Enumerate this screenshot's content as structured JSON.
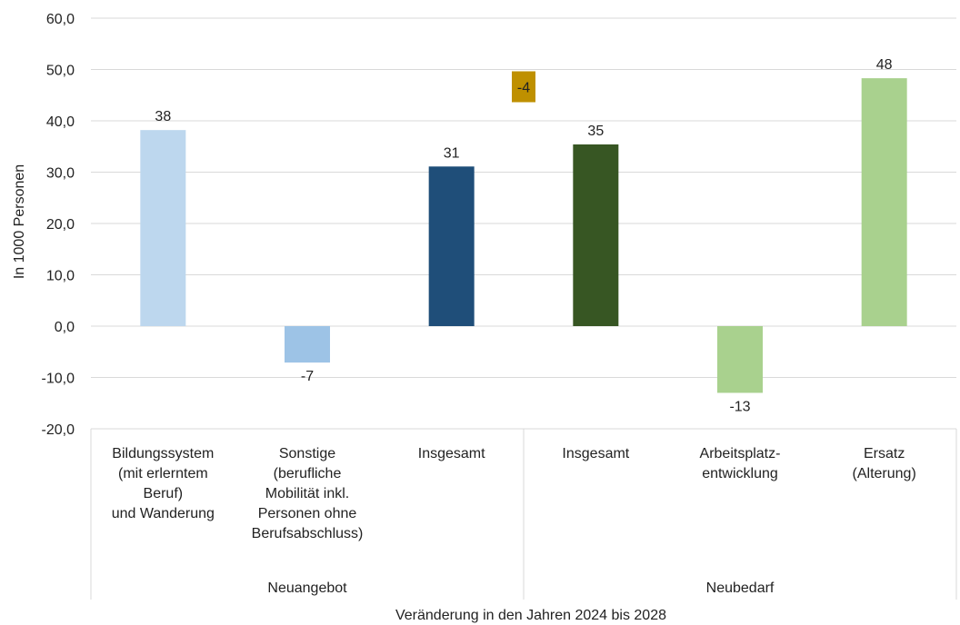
{
  "chart_data": {
    "type": "bar",
    "categories": [
      [
        "Bildungssystem",
        "(mit erlerntem",
        "Beruf)",
        "und Wanderung"
      ],
      [
        "Sonstige",
        "(berufliche",
        "Mobilität inkl.",
        "Personen ohne",
        "Berufsabschluss)"
      ],
      [
        "Insgesamt"
      ],
      [
        "Insgesamt"
      ],
      [
        "Arbeitsplatz-",
        "entwicklung"
      ],
      [
        "Ersatz",
        "(Alterung)"
      ]
    ],
    "values": [
      38.2,
      -7.1,
      31.1,
      35.4,
      -13.0,
      48.3
    ],
    "data_labels": [
      "38",
      "-7",
      "31",
      "35",
      "-13",
      "48"
    ],
    "colors": [
      "#bdd7ee",
      "#9dc3e6",
      "#1f4e79",
      "#375623",
      "#a9d18e",
      "#a9d18e"
    ],
    "groups": [
      {
        "label": "Neuangebot",
        "span": [
          0,
          2
        ]
      },
      {
        "label": "Neubedarf",
        "span": [
          3,
          5
        ]
      }
    ],
    "balance": {
      "label": "-4",
      "value": -4,
      "color": "#bf9000"
    },
    "y_ticks": [
      "60,0",
      "50,0",
      "40,0",
      "30,0",
      "20,0",
      "10,0",
      "0,0",
      "-10,0",
      "-20,0"
    ],
    "ylim": [
      -20,
      60
    ],
    "ylabel": "In 1000 Personen",
    "xlabel": "Veränderung in den Jahren 2024 bis 2028",
    "grid": true
  }
}
